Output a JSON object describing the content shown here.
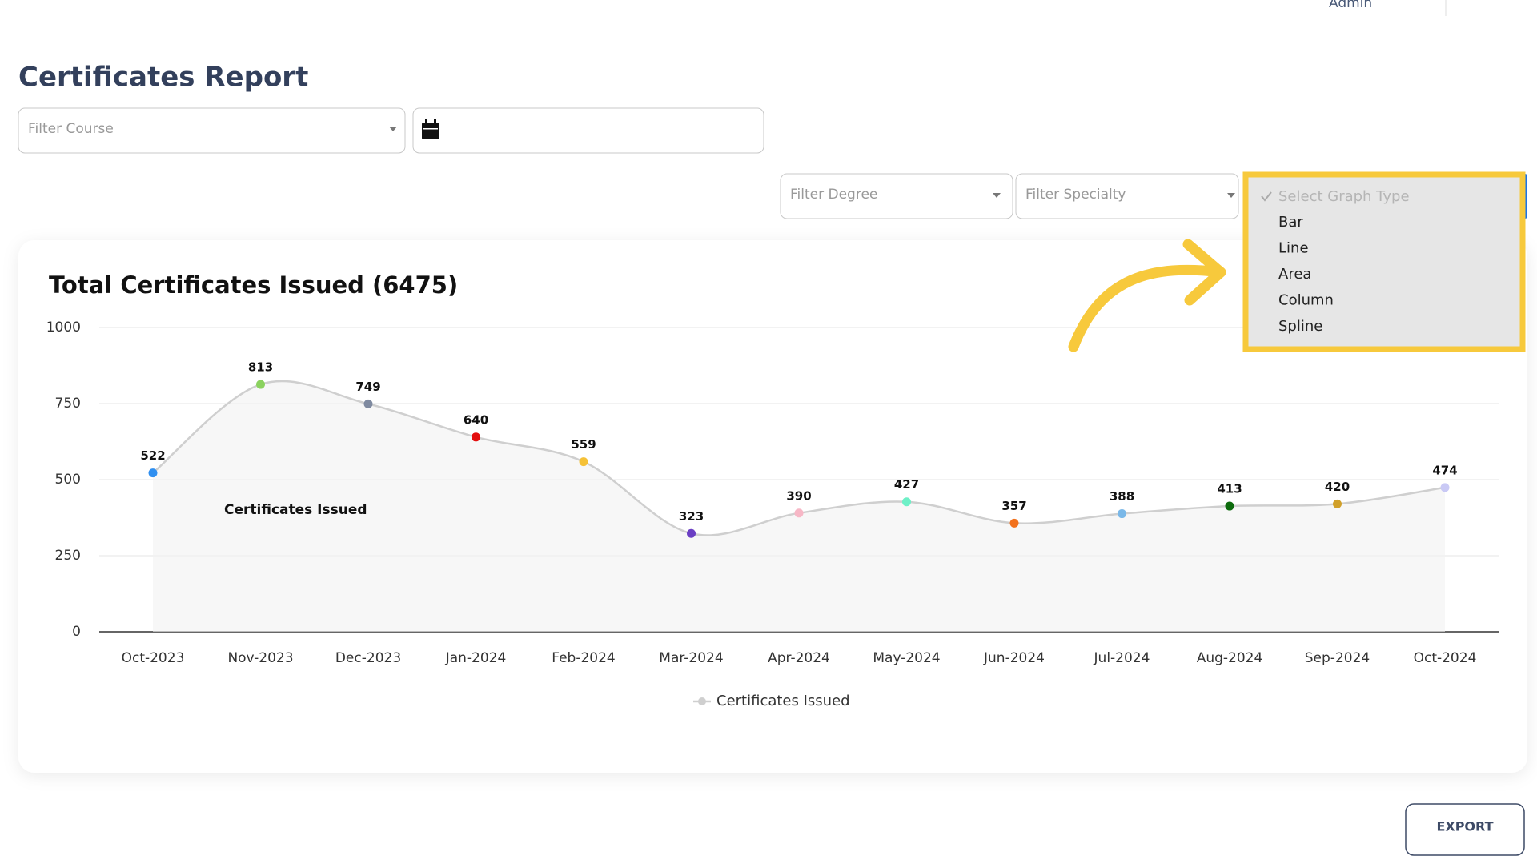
{
  "header": {
    "user": "Admin",
    "title": "Certificates Report"
  },
  "filters": {
    "course": "Filter Course",
    "degree": "Filter Degree",
    "specialty": "Filter Specialty"
  },
  "graph_type_menu": {
    "placeholder": "Select Graph Type",
    "options": [
      "Bar",
      "Line",
      "Area",
      "Column",
      "Spline"
    ]
  },
  "chart_data": {
    "type": "spline",
    "title": "Total Certificates Issued (6475)",
    "categories": [
      "Oct-2023",
      "Nov-2023",
      "Dec-2023",
      "Jan-2024",
      "Feb-2024",
      "Mar-2024",
      "Apr-2024",
      "May-2024",
      "Jun-2024",
      "Jul-2024",
      "Aug-2024",
      "Sep-2024",
      "Oct-2024"
    ],
    "series": [
      {
        "name": "Certificates Issued",
        "color": "#cfcfcf",
        "values": [
          522,
          813,
          749,
          640,
          559,
          323,
          390,
          427,
          357,
          388,
          413,
          420,
          474
        ],
        "point_colors": [
          "#2f8ff0",
          "#8bd25f",
          "#7f8aa0",
          "#e30e0e",
          "#f5c137",
          "#6b3fc4",
          "#f7b7c6",
          "#6ef0c7",
          "#f2711c",
          "#7ab8e8",
          "#0d6b0d",
          "#d1a02a",
          "#c9c9f5"
        ]
      }
    ],
    "annotations": [
      "Certificates Issued"
    ],
    "ylim": [
      0,
      1000
    ],
    "yticks": [
      0,
      250,
      500,
      750,
      1000
    ],
    "grid": true,
    "legend": "bottom"
  },
  "actions": {
    "export": "EXPORT"
  }
}
